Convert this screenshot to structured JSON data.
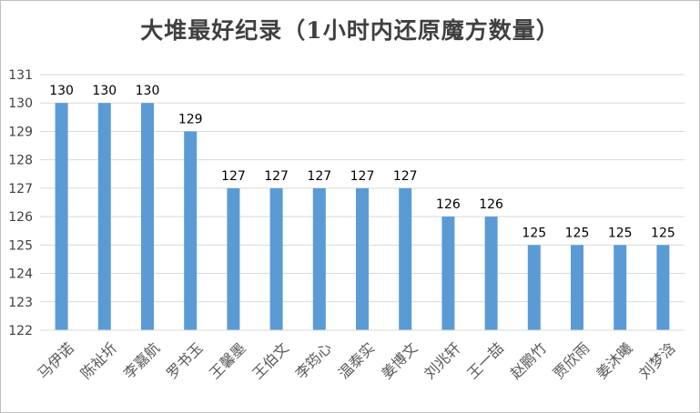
{
  "chart_data": {
    "type": "bar",
    "title": "大堆最好纪录（1小时内还原魔方数量）",
    "xlabel": "",
    "ylabel": "",
    "categories": [
      "马伊诺",
      "陈祉圻",
      "李嘉航",
      "罗书玉",
      "王馨墨",
      "王伯文",
      "李筠心",
      "温泰实",
      "姜博文",
      "刘兆轩",
      "王一喆",
      "赵鹏竹",
      "贾欣雨",
      "姜沐曦",
      "刘梦浛"
    ],
    "values": [
      130,
      130,
      130,
      129,
      127,
      127,
      127,
      127,
      127,
      126,
      126,
      125,
      125,
      125,
      125
    ],
    "ylim": [
      122,
      131
    ],
    "yticks": [
      122,
      123,
      124,
      125,
      126,
      127,
      128,
      129,
      130,
      131
    ],
    "grid": true,
    "legend": "none",
    "bar_color": "#5b9bd5",
    "grid_color": "#d9d9d9",
    "text_color": "#404040"
  }
}
